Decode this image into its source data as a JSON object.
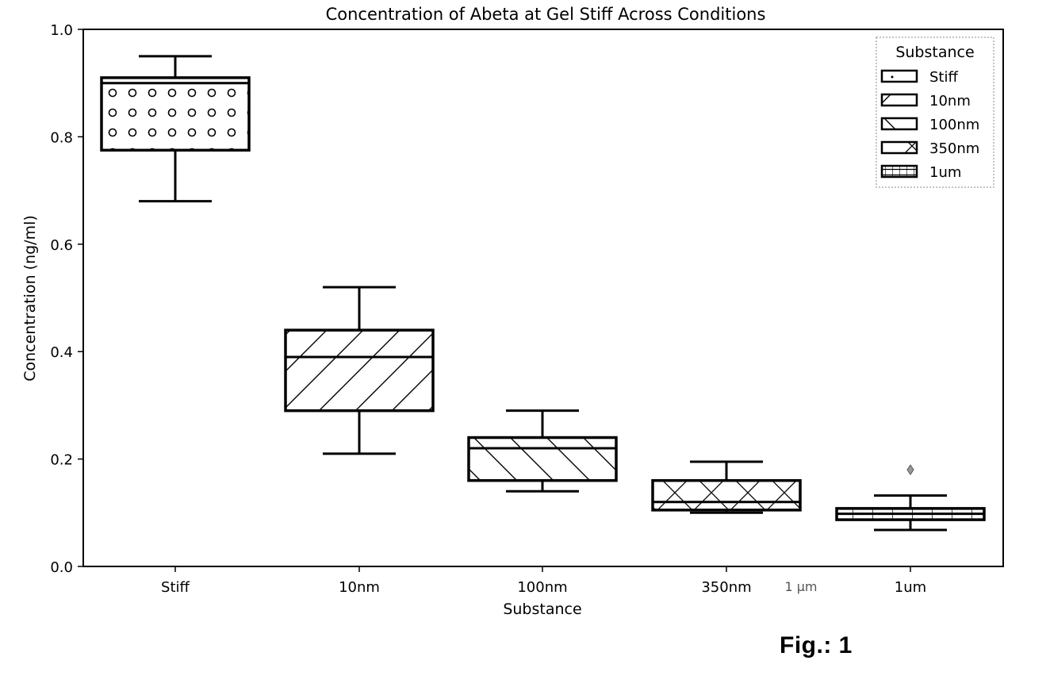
{
  "figure_label": "Fig.: 1",
  "chart_data": {
    "type": "box",
    "title": "Concentration of Abeta at Gel Stiff Across Conditions",
    "xlabel": "Substance",
    "ylabel": "Concentration (ng/ml)",
    "ylim": [
      0.0,
      1.0
    ],
    "yticks": [
      "0.0",
      "0.2",
      "0.4",
      "0.6",
      "0.8",
      "1.0"
    ],
    "categories": [
      "Stiff",
      "10nm",
      "100nm",
      "350nm",
      "1um"
    ],
    "stray_tick_text": "1 µm",
    "grid": false,
    "legend": {
      "title": "Substance",
      "position": "top-right",
      "entries": [
        "Stiff",
        "10nm",
        "100nm",
        "350nm",
        "1um"
      ]
    },
    "series": [
      {
        "category": "Stiff",
        "pattern": "circles",
        "whisker_low": 0.68,
        "q1": 0.775,
        "median": 0.9,
        "q3": 0.91,
        "whisker_high": 0.95,
        "outliers": []
      },
      {
        "category": "10nm",
        "pattern": "forward-diagonal",
        "whisker_low": 0.21,
        "q1": 0.29,
        "median": 0.39,
        "q3": 0.44,
        "whisker_high": 0.52,
        "outliers": []
      },
      {
        "category": "100nm",
        "pattern": "back-diagonal",
        "whisker_low": 0.14,
        "q1": 0.16,
        "median": 0.22,
        "q3": 0.24,
        "whisker_high": 0.29,
        "outliers": []
      },
      {
        "category": "350nm",
        "pattern": "cross",
        "whisker_low": 0.1,
        "q1": 0.105,
        "median": 0.12,
        "q3": 0.16,
        "whisker_high": 0.195,
        "outliers": []
      },
      {
        "category": "1um",
        "pattern": "grid",
        "whisker_low": 0.068,
        "q1": 0.087,
        "median": 0.098,
        "q3": 0.108,
        "whisker_high": 0.132,
        "outliers": [
          0.18
        ]
      }
    ]
  }
}
